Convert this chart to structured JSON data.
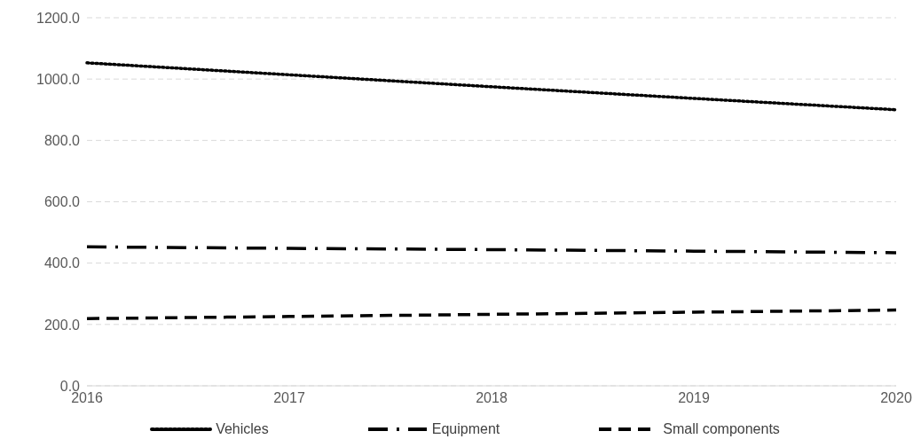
{
  "chart_data": {
    "type": "line",
    "categories": [
      "2016",
      "2017",
      "2018",
      "2019",
      "2020"
    ],
    "series": [
      {
        "name": "Vehicles",
        "color": "#000000",
        "line_style": "dotted",
        "values": [
          1053,
          1014,
          975,
          937,
          900
        ]
      },
      {
        "name": "Equipment",
        "color": "#000000",
        "line_style": "dashdot",
        "values": [
          453,
          448,
          444,
          439,
          434
        ]
      },
      {
        "name": "Small components",
        "color": "#000000",
        "line_style": "dashed",
        "values": [
          219,
          226,
          233,
          240,
          247
        ]
      }
    ],
    "ylim": [
      0,
      1200
    ],
    "yticks": [
      {
        "value": 0,
        "label": "0.0"
      },
      {
        "value": 200,
        "label": "200.0"
      },
      {
        "value": 400,
        "label": "400.0"
      },
      {
        "value": 600,
        "label": "600.0"
      },
      {
        "value": 800,
        "label": "800.0"
      },
      {
        "value": 1000,
        "label": "1000.0"
      },
      {
        "value": 1200,
        "label": "1200.0"
      }
    ],
    "grid": "y",
    "legend": "bottom",
    "marker": "none"
  }
}
